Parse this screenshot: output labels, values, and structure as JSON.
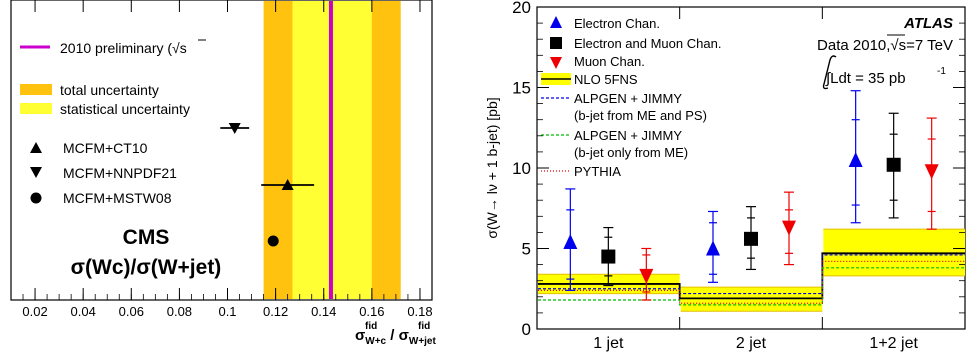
{
  "chart_data": [
    {
      "type": "scatter",
      "xlim": [
        0.01,
        0.185
      ],
      "xticks": [
        0.02,
        0.04,
        0.06,
        0.08,
        0.1,
        0.12,
        0.14,
        0.16,
        0.18
      ],
      "xtick_labels": [
        "0.02",
        "0.04",
        "0.06",
        "0.08",
        "0.1",
        "0.12",
        "0.14",
        "0.16",
        "0.18"
      ],
      "xlabel_main": "σ",
      "xlabel_sub1": "W+c",
      "xlabel_sup1": "fid",
      "xlabel_sep": " / σ",
      "xlabel_sub2": "W+jet",
      "xlabel_sup2": "fid",
      "measurement": {
        "label": "2010 preliminary (√s",
        "value": 0.143,
        "total_uncertainty": [
          0.115,
          0.172
        ],
        "statistical_uncertainty": [
          0.127,
          0.16
        ],
        "line_color": "#cc00cc",
        "total_color": "#ffc20e",
        "stat_color": "#ffff33"
      },
      "legend_total": "total uncertainty",
      "legend_stat": "statistical uncertainty",
      "predictions": [
        {
          "name": "MCFM+CT10",
          "marker": "triangle-up",
          "value": 0.125,
          "xerr": [
            0.114,
            0.136
          ],
          "row": 2
        },
        {
          "name": "MCFM+NNPDF21",
          "marker": "triangle-down",
          "value": 0.103,
          "xerr": [
            0.097,
            0.109
          ],
          "row": 1
        },
        {
          "name": "MCFM+MSTW08",
          "marker": "circle",
          "value": 0.119,
          "xerr": null,
          "row": 3
        }
      ],
      "title_line1": "CMS",
      "title_line2": "σ(Wc)/σ(W+jet)"
    },
    {
      "type": "scatter",
      "ylabel": "σ(W→ lν + 1 b-jet) [pb]",
      "ylim": [
        0,
        20
      ],
      "yticks": [
        0,
        5,
        10,
        15,
        20
      ],
      "ytick_labels": [
        "0",
        "5",
        "10",
        "15",
        "20"
      ],
      "categories": [
        "1 jet",
        "2 jet",
        "1+2 jet"
      ],
      "experiment": "ATLAS",
      "data_label_prefix": "Data 2010,",
      "data_label_sqrt": "√s=7 TeV",
      "lumi_label": "∫Ldt = 35 pb",
      "lumi_sup": "-1",
      "series": [
        {
          "name": "Electron Chan.",
          "marker": "triangle-up",
          "color": "#0000ee",
          "values": [
            5.4,
            5.0,
            10.5
          ],
          "err_total": [
            [
              2.4,
              8.7
            ],
            [
              2.9,
              7.3
            ],
            [
              6.6,
              14.8
            ]
          ],
          "err_stat": [
            [
              3.1,
              7.4
            ],
            [
              3.4,
              6.6
            ],
            [
              7.7,
              13.0
            ]
          ]
        },
        {
          "name": "Electron and Muon Chan.",
          "marker": "square",
          "color": "#000000",
          "values": [
            4.5,
            5.6,
            10.2
          ],
          "err_total": [
            [
              2.7,
              6.3
            ],
            [
              3.7,
              7.6
            ],
            [
              6.9,
              13.4
            ]
          ],
          "err_stat": [
            [
              3.3,
              5.7
            ],
            [
              4.4,
              6.9
            ],
            [
              8.0,
              12.1
            ]
          ]
        },
        {
          "name": "Muon Chan.",
          "marker": "triangle-down",
          "color": "#ee0000",
          "values": [
            3.3,
            6.3,
            9.8
          ],
          "err_total": [
            [
              1.8,
              5.0
            ],
            [
              4.0,
              8.5
            ],
            [
              6.2,
              13.1
            ]
          ],
          "err_stat": [
            [
              2.3,
              4.6
            ],
            [
              4.7,
              7.4
            ],
            [
              7.3,
              11.8
            ]
          ]
        }
      ],
      "predictions": [
        {
          "name": "NLO 5FNS",
          "style": "solid",
          "color": "#000000",
          "band_color": "#ffff00",
          "band_edge_color": "#e0c000",
          "values": [
            2.8,
            1.9,
            4.7
          ],
          "band": [
            [
              2.2,
              3.4
            ],
            [
              1.1,
              2.6
            ],
            [
              3.3,
              6.2
            ]
          ]
        },
        {
          "name_line1": "ALPGEN + JIMMY",
          "name_line2": "(b-jet from ME and PS)",
          "style": "dashed",
          "color": "#0000ee",
          "values": [
            2.5,
            2.2,
            4.6
          ]
        },
        {
          "name_line1": "ALPGEN + JIMMY",
          "name_line2": "(b-jet only from ME)",
          "style": "dashed",
          "color": "#00bb00",
          "values": [
            1.8,
            1.5,
            3.8
          ]
        },
        {
          "name": "PYTHIA",
          "style": "dotted",
          "color": "#ee0000",
          "values": [
            2.4,
            1.6,
            4.2
          ]
        }
      ]
    }
  ]
}
